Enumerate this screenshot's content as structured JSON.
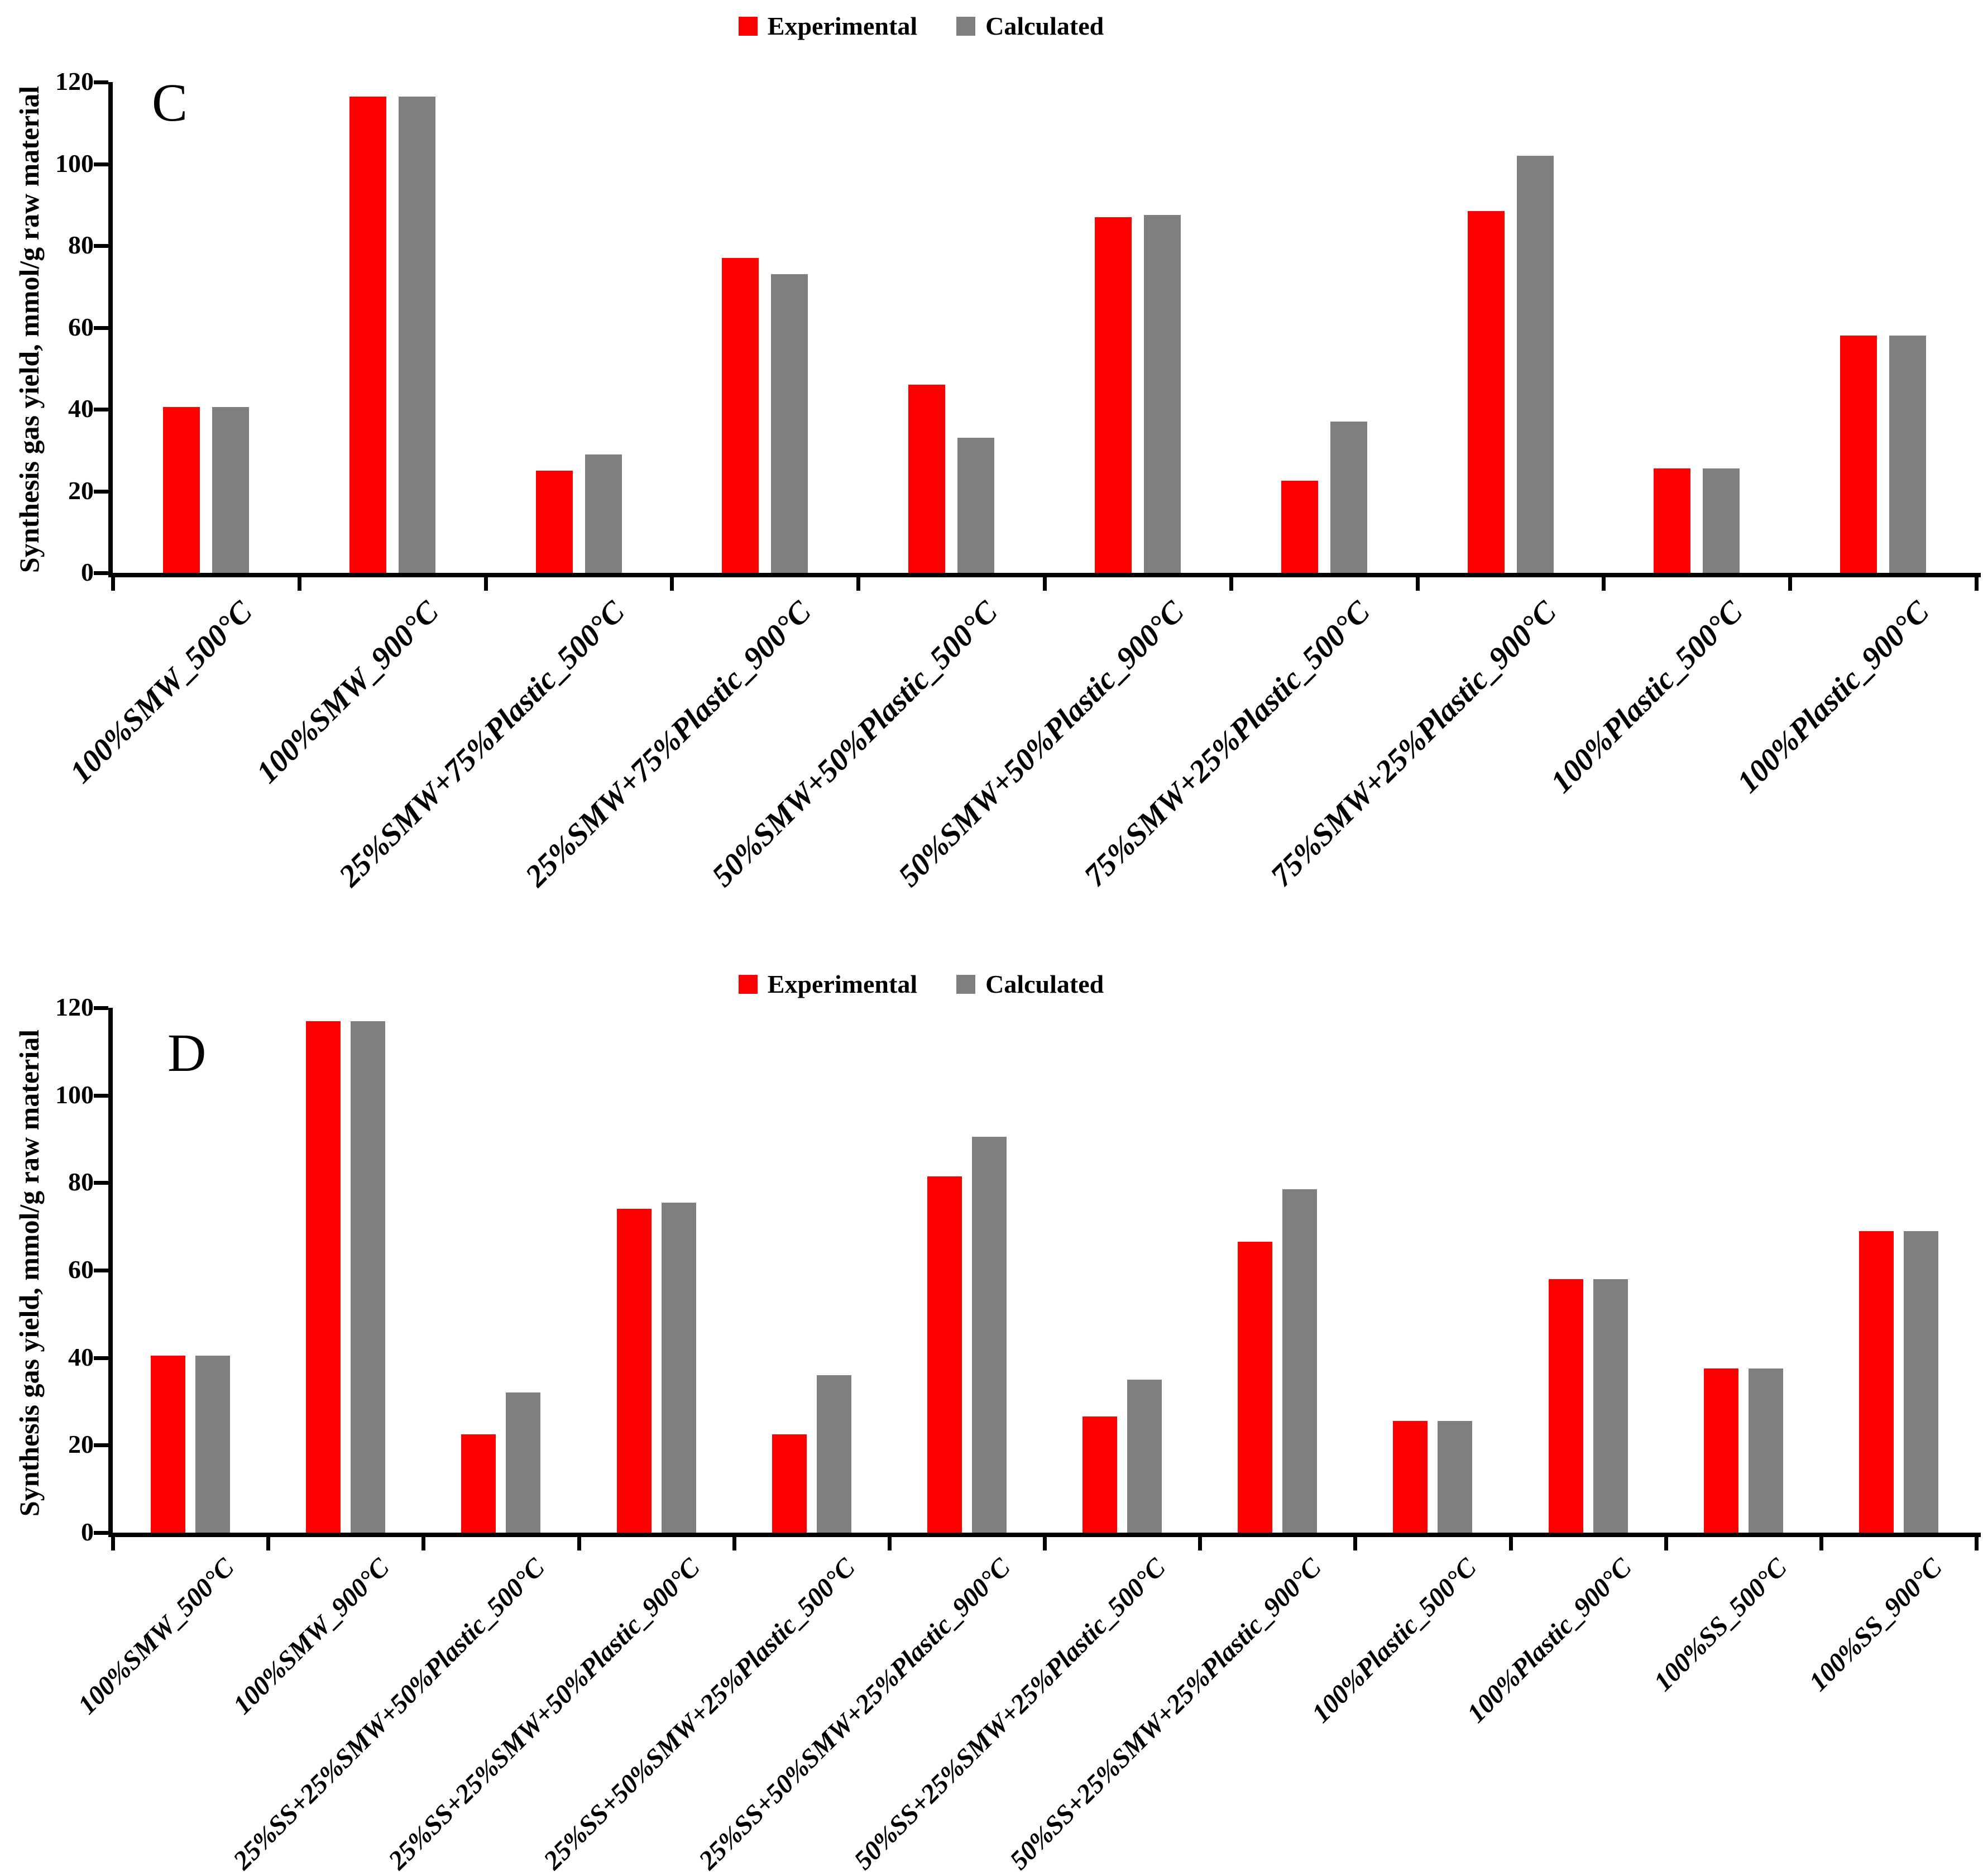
{
  "legend": {
    "experimental": "Experimental",
    "calculated": "Calculated"
  },
  "colors": {
    "experimental": "#FF0000",
    "calculated": "#7F7F7F",
    "axis": "#000000",
    "background": "#FFFFFF"
  },
  "y_axis": {
    "label": "Synthesis gas yield, mmol/g raw material",
    "min": 0,
    "max": 120,
    "tick_step": 20,
    "ticks": [
      0,
      20,
      40,
      60,
      80,
      100,
      120
    ]
  },
  "chart_data": [
    {
      "type": "bar",
      "panel_letter": "C",
      "ylabel": "Synthesis gas yield, mmol/g raw material",
      "ylim": [
        0,
        120
      ],
      "yticks": [
        0,
        20,
        40,
        60,
        80,
        100,
        120
      ],
      "grid": false,
      "legend_position": "top-center",
      "categories": [
        "100%SMW_500°C",
        "100%SMW_900°C",
        "25%SMW+75%Plastic_500°C",
        "25%SMW+75%Plastic_900°C",
        "50%SMW+50%Plastic_500°C",
        "50%SMW+50%Plastic_900°C",
        "75%SMW+25%Plastic_500°C",
        "75%SMW+25%Plastic_900°C",
        "100%Plastic_500°C",
        "100%Plastic_900°C"
      ],
      "series": [
        {
          "name": "Experimental",
          "color": "#FF0000",
          "values": [
            40.5,
            116.5,
            25,
            77,
            46,
            87,
            22.5,
            88.5,
            25.5,
            58
          ]
        },
        {
          "name": "Calculated",
          "color": "#7F7F7F",
          "values": [
            40.5,
            116.5,
            29,
            73,
            33,
            87.5,
            37,
            102,
            25.5,
            58
          ]
        }
      ]
    },
    {
      "type": "bar",
      "panel_letter": "D",
      "ylabel": "Synthesis gas yield, mmol/g raw material",
      "ylim": [
        0,
        120
      ],
      "yticks": [
        0,
        20,
        40,
        60,
        80,
        100,
        120
      ],
      "grid": false,
      "legend_position": "top-center",
      "categories": [
        "100%SMW_500°C",
        "100%SMW_900°C",
        "25%SS+25%SMW+50%Plastic_500°C",
        "25%SS+25%SMW+50%Plastic_900°C",
        "25%SS+50%SMW+25%Plastic_500°C",
        "25%SS+50%SMW+25%Plastic_900°C",
        "50%SS+25%SMW+25%Plastic_500°C",
        "50%SS+25%SMW+25%Plastic_900°C",
        "100%Plastic_500°C",
        "100%Plastic_900°C",
        "100%SS_500°C",
        "100%SS_900°C"
      ],
      "series": [
        {
          "name": "Experimental",
          "color": "#FF0000",
          "values": [
            40.5,
            117,
            22.5,
            74,
            22.5,
            81.5,
            26.5,
            66.5,
            25.5,
            58,
            37.5,
            69
          ]
        },
        {
          "name": "Calculated",
          "color": "#7F7F7F",
          "values": [
            40.5,
            117,
            32,
            75.5,
            36,
            90.5,
            35,
            78.5,
            25.5,
            58,
            37.5,
            69
          ]
        }
      ]
    }
  ]
}
